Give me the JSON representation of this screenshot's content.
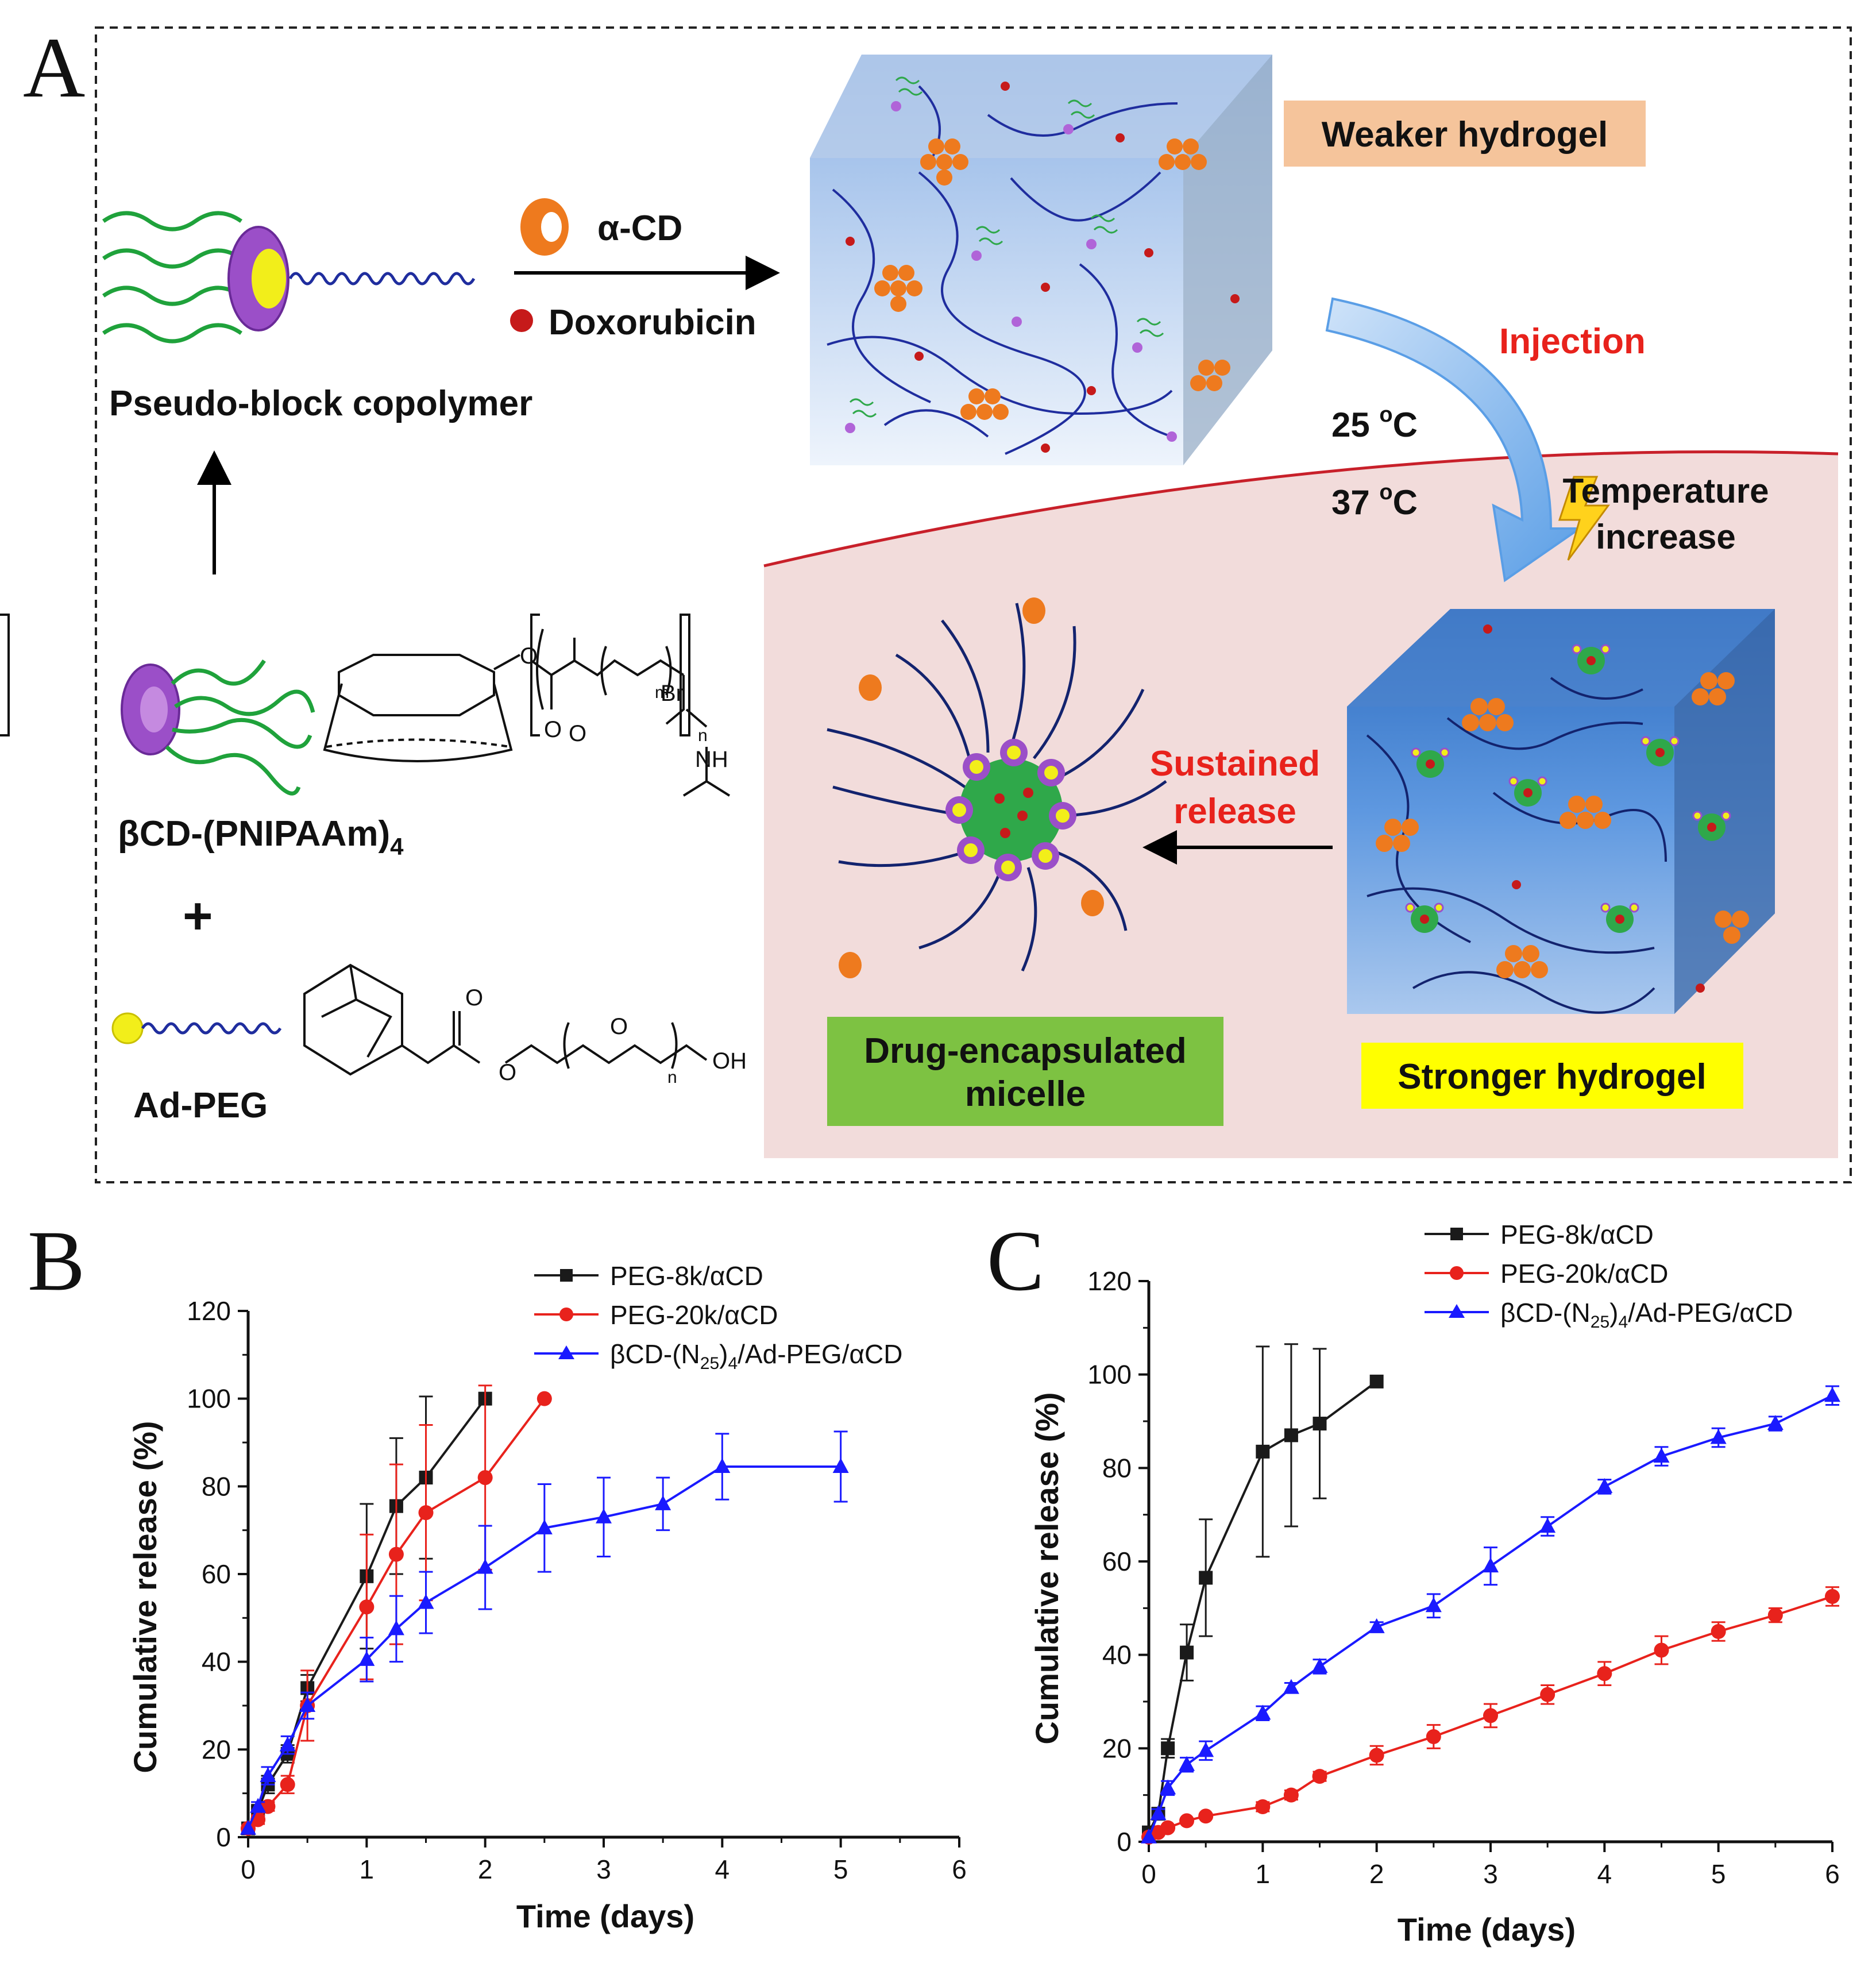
{
  "panels": {
    "a": "A",
    "b": "B",
    "c": "C"
  },
  "scheme": {
    "alpha_cd": "α-CD",
    "doxorubicin": "Doxorubicin",
    "pseudo_block": "Pseudo-block copolymer",
    "bcd_main": "βCD-(PNIPAAm)",
    "bcd_sub": "4",
    "plus": "+",
    "ad_peg": "Ad-PEG",
    "weaker": "Weaker hydrogel",
    "injection": "Injection",
    "t25_main": "25 ",
    "t25_sup": "o",
    "t25_unit": "C",
    "t37_main": "37 ",
    "t37_sup": "o",
    "t37_unit": "C",
    "temp_line1": "Temperature",
    "temp_line2": "increase",
    "sustained_line1": "Sustained",
    "sustained_line2": "release",
    "micelle_line1": "Drug-encapsulated",
    "micelle_line2": "micelle",
    "stronger": "Stronger hydrogel",
    "chem": {
      "o": "O",
      "br": "Br",
      "m": "m",
      "n": "n",
      "nh": "NH",
      "oh": "OH"
    }
  },
  "colors": {
    "weaker_bg": "#f5c49b",
    "stronger_bg": "#ffff00",
    "micelle_bg": "#7dc242",
    "red_text": "#e8221c",
    "pink_region": "#f2dcdb",
    "series_black": "#1a1a1a",
    "series_red": "#e8221c",
    "series_blue": "#1a1aff"
  },
  "chart_data": [
    {
      "type": "line",
      "panel": "B",
      "xlabel": "Time (days)",
      "ylabel": "Cumulative release (%)",
      "xlim": [
        0,
        6
      ],
      "ylim": [
        0,
        120
      ],
      "xticks": [
        "0",
        "1",
        "2",
        "3",
        "4",
        "5",
        "6"
      ],
      "yticks": [
        "0",
        "20",
        "40",
        "60",
        "80",
        "100",
        "120"
      ],
      "legend_position": "top-right",
      "series": [
        {
          "name": "PEG-8k/αCD",
          "color": "#1a1a1a",
          "marker": "square",
          "x": [
            0,
            0.083,
            0.167,
            0.333,
            0.5,
            1,
            1.25,
            1.5,
            2
          ],
          "y": [
            2,
            6,
            12,
            19,
            34,
            59.5,
            75.5,
            82,
            100
          ],
          "err": [
            0,
            1,
            2,
            2,
            3,
            16.5,
            15.5,
            18.5,
            0
          ]
        },
        {
          "name": "PEG-20k/αCD",
          "color": "#e8221c",
          "marker": "circle",
          "x": [
            0,
            0.083,
            0.167,
            0.333,
            0.5,
            1,
            1.25,
            1.5,
            2,
            2.5
          ],
          "y": [
            2,
            4,
            7,
            12,
            30,
            52.5,
            64.5,
            74,
            82,
            100
          ],
          "err": [
            0,
            1,
            1,
            2,
            8,
            16.5,
            20.5,
            20,
            21,
            0
          ]
        },
        {
          "name": "βCD-(N25)4/Ad-PEG/αCD",
          "color": "#1a1aff",
          "marker": "triangle",
          "x": [
            0,
            0.083,
            0.167,
            0.333,
            0.5,
            1,
            1.25,
            1.5,
            2,
            2.5,
            3,
            3.5,
            4,
            5
          ],
          "y": [
            2,
            7,
            14,
            21,
            30,
            40.5,
            47.5,
            53.5,
            61.5,
            70.5,
            73,
            76,
            84.5,
            84.5
          ],
          "err": [
            0,
            1,
            2,
            2,
            3,
            5,
            7.5,
            7,
            9.5,
            10,
            9,
            6,
            7.5,
            8
          ]
        }
      ]
    },
    {
      "type": "line",
      "panel": "C",
      "xlabel": "Time (days)",
      "ylabel": "Cumulative release (%)",
      "xlim": [
        0,
        6
      ],
      "ylim": [
        0,
        120
      ],
      "xticks": [
        "0",
        "1",
        "2",
        "3",
        "4",
        "5",
        "6"
      ],
      "yticks": [
        "0",
        "20",
        "40",
        "60",
        "80",
        "100",
        "120"
      ],
      "legend_position": "top-right",
      "series": [
        {
          "name": "PEG-8k/αCD",
          "color": "#1a1a1a",
          "marker": "square",
          "x": [
            0,
            0.083,
            0.167,
            0.333,
            0.5,
            1,
            1.25,
            1.5,
            2
          ],
          "y": [
            2,
            6,
            20,
            40.5,
            56.5,
            83.5,
            87,
            89.5,
            98.5
          ],
          "err": [
            0,
            1,
            2,
            6,
            12.5,
            22.5,
            19.5,
            16,
            0
          ]
        },
        {
          "name": "PEG-20k/αCD",
          "color": "#e8221c",
          "marker": "circle",
          "x": [
            0,
            0.083,
            0.167,
            0.333,
            0.5,
            1,
            1.25,
            1.5,
            2,
            2.5,
            3,
            3.5,
            4,
            4.5,
            5,
            5.5,
            6
          ],
          "y": [
            1,
            2,
            3,
            4.5,
            5.5,
            7.5,
            10,
            14,
            18.5,
            22.5,
            27,
            31.5,
            36,
            41,
            45,
            48.5,
            52.5
          ],
          "err": [
            0,
            0.5,
            0.5,
            0.5,
            0.5,
            1,
            1,
            1,
            2,
            2.5,
            2.5,
            2,
            2.5,
            3,
            2,
            1.5,
            2
          ]
        },
        {
          "name": "βCD-(N25)4/Ad-PEG/αCD",
          "color": "#1a1aff",
          "marker": "triangle",
          "x": [
            0,
            0.083,
            0.167,
            0.333,
            0.5,
            1,
            1.25,
            1.5,
            2,
            2.5,
            3,
            3.5,
            4,
            4.5,
            5,
            5.5,
            6
          ],
          "y": [
            1,
            6,
            11.5,
            16.5,
            19.5,
            27.5,
            33,
            37.5,
            46,
            50.5,
            59,
            67.5,
            76,
            82.5,
            86.5,
            89.5,
            95.5
          ],
          "err": [
            0,
            1,
            1.5,
            1.5,
            2,
            1.5,
            1,
            1.5,
            1,
            2.5,
            4,
            2,
            1.5,
            2,
            2,
            1.5,
            2
          ]
        }
      ]
    }
  ],
  "legend": {
    "s1": "PEG-8k/αCD",
    "s2": "PEG-20k/αCD",
    "s3_a": "βCD-(N",
    "s3_sub1": "25",
    "s3_b": ")",
    "s3_sub2": "4",
    "s3_c": "/Ad-PEG/αCD"
  }
}
